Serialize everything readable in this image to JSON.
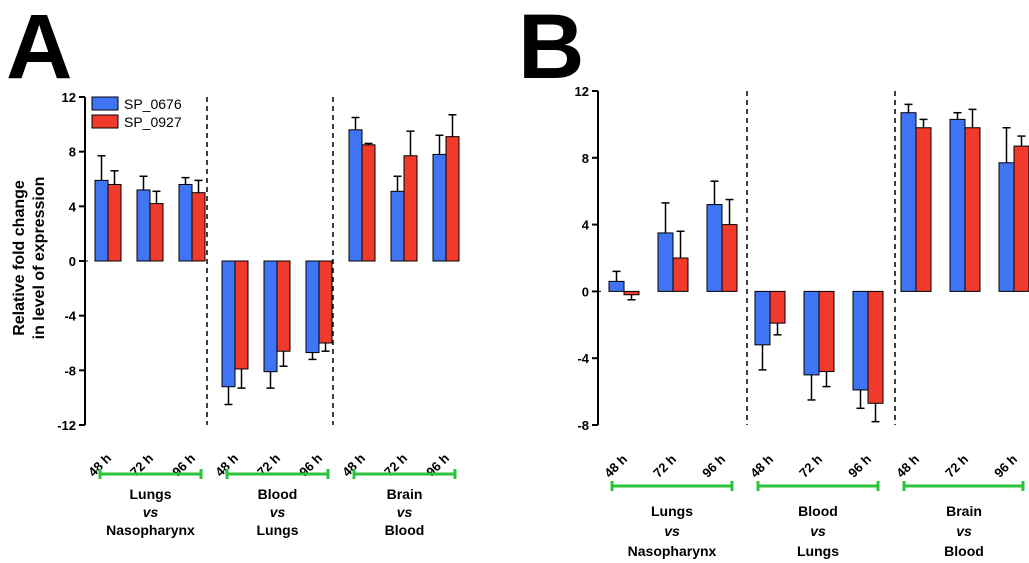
{
  "chart_data": [
    {
      "panel": "A",
      "type": "bar",
      "ylabel_lines": [
        "Relative fold change",
        "in level of expression"
      ],
      "ylim": [
        -12,
        12
      ],
      "yticks": [
        -12,
        -8,
        -4,
        0,
        4,
        8,
        12
      ],
      "categories": [
        "48 h",
        "72 h",
        "96 h",
        "48 h",
        "72 h",
        "96 h",
        "48 h",
        "72 h",
        "96 h"
      ],
      "groups": [
        {
          "lines": [
            "Lungs",
            "vs",
            "Nasopharynx"
          ]
        },
        {
          "lines": [
            "Blood",
            "vs",
            "Lungs"
          ]
        },
        {
          "lines": [
            "Brain",
            "vs",
            "Blood"
          ]
        }
      ],
      "legend": [
        "SP_0676",
        "SP_0927"
      ],
      "series": [
        {
          "name": "SP_0676",
          "color": "#3f74f5",
          "values": [
            5.9,
            5.2,
            5.6,
            -9.2,
            -8.1,
            -6.7,
            9.6,
            5.1,
            7.8
          ],
          "errors": [
            1.8,
            1.0,
            0.5,
            1.3,
            1.2,
            0.5,
            0.9,
            1.1,
            1.4
          ]
        },
        {
          "name": "SP_0927",
          "color": "#f03a2c",
          "values": [
            5.6,
            4.2,
            5.0,
            -7.9,
            -6.6,
            -6.0,
            8.5,
            7.7,
            9.1
          ],
          "errors": [
            1.0,
            0.9,
            0.9,
            1.4,
            1.1,
            0.6,
            0.1,
            1.8,
            1.6
          ]
        }
      ]
    },
    {
      "panel": "B",
      "type": "bar",
      "ylim": [
        -8,
        12
      ],
      "yticks": [
        -8,
        -4,
        0,
        4,
        8,
        12
      ],
      "categories": [
        "48 h",
        "72 h",
        "96 h",
        "48 h",
        "72 h",
        "96 h",
        "48 h",
        "72 h",
        "96 h"
      ],
      "groups": [
        {
          "lines": [
            "Lungs",
            "vs",
            "Nasopharynx"
          ]
        },
        {
          "lines": [
            "Blood",
            "vs",
            "Lungs"
          ]
        },
        {
          "lines": [
            "Brain",
            "vs",
            "Blood"
          ]
        }
      ],
      "series": [
        {
          "name": "SP_0676",
          "color": "#3f74f5",
          "values": [
            0.6,
            3.5,
            5.2,
            -3.2,
            -5.0,
            -5.9,
            10.7,
            10.3,
            7.7
          ],
          "errors": [
            0.6,
            1.8,
            1.4,
            1.5,
            1.5,
            1.1,
            0.5,
            0.4,
            2.1
          ]
        },
        {
          "name": "SP_0927",
          "color": "#f03a2c",
          "values": [
            -0.2,
            2.0,
            4.0,
            -1.9,
            -4.8,
            -6.7,
            9.8,
            9.8,
            8.7
          ],
          "errors": [
            0.3,
            1.6,
            1.5,
            0.7,
            0.9,
            1.1,
            0.5,
            1.1,
            0.6
          ]
        }
      ]
    }
  ]
}
